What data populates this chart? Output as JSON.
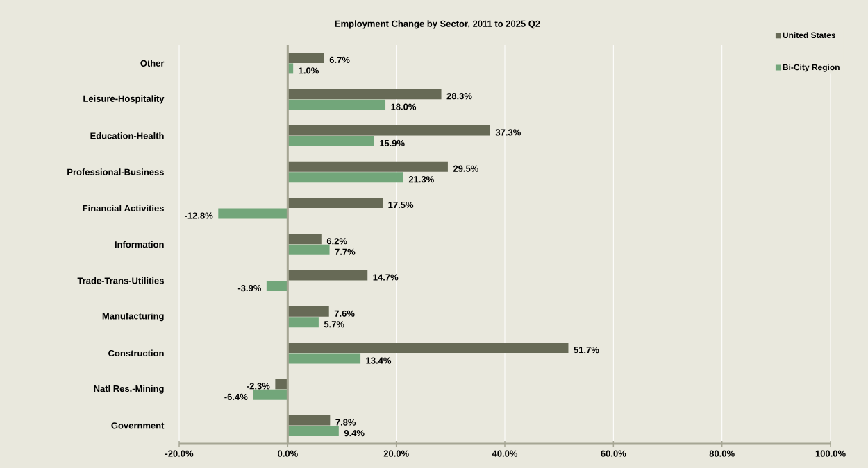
{
  "chart_data": {
    "type": "bar",
    "orientation": "horizontal",
    "title": "Employment Change by Sector, 2011 to 2025 Q2",
    "categories": [
      "Other",
      "Leisure-Hospitality",
      "Education-Health",
      "Professional-Business",
      "Financial Activities",
      "Information",
      "Trade-Trans-Utilities",
      "Manufacturing",
      "Construction",
      "Natl Res.-Mining",
      "Government"
    ],
    "series": [
      {
        "name": "United States",
        "color": "#676a56",
        "values": [
          6.7,
          28.3,
          37.3,
          29.5,
          17.5,
          6.2,
          14.7,
          7.6,
          51.7,
          -2.3,
          7.8
        ],
        "value_labels": [
          "6.7%",
          "28.3%",
          "37.3%",
          "29.5%",
          "17.5%",
          "6.2%",
          "14.7%",
          "7.6%",
          "51.7%",
          "-2.3%",
          "7.8%"
        ]
      },
      {
        "name": "Bi-City Region",
        "color": "#72a67a",
        "values": [
          1.0,
          18.0,
          15.9,
          21.3,
          -12.8,
          7.7,
          -3.9,
          5.7,
          13.4,
          -6.4,
          9.4
        ],
        "value_labels": [
          "1.0%",
          "18.0%",
          "15.9%",
          "21.3%",
          "-12.8%",
          "7.7%",
          "-3.9%",
          "5.7%",
          "13.4%",
          "-6.4%",
          "9.4%"
        ]
      }
    ],
    "xlim": [
      -20,
      100
    ],
    "xticks": [
      {
        "value": -20,
        "label": "-20.0%"
      },
      {
        "value": 0,
        "label": "0.0%"
      },
      {
        "value": 20,
        "label": "20.0%"
      },
      {
        "value": 40,
        "label": "40.0%"
      },
      {
        "value": 60,
        "label": "60.0%"
      },
      {
        "value": 80,
        "label": "80.0%"
      },
      {
        "value": 100,
        "label": "100.0%"
      }
    ],
    "grid": "x",
    "legend": "top right"
  }
}
